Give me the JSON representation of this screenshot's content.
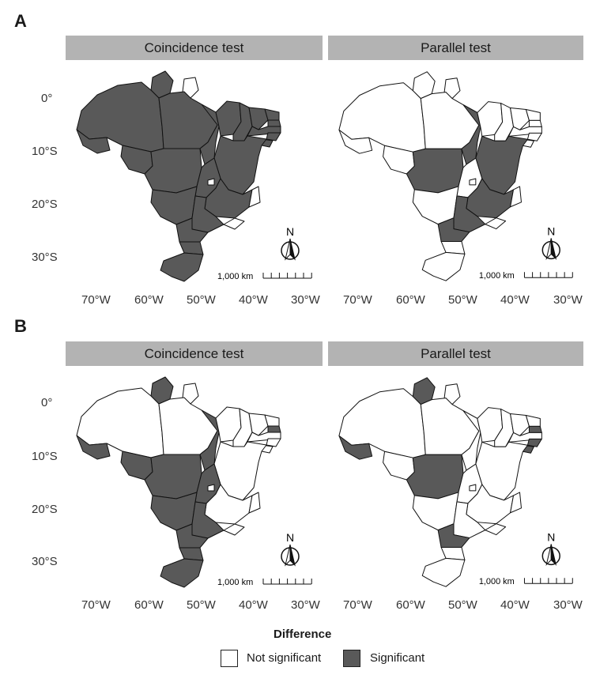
{
  "figure": {
    "panels": [
      {
        "id": "A",
        "facets": [
          {
            "title": "Coincidence test",
            "significant": [
              "RR",
              "AM",
              "PA",
              "MT",
              "RO",
              "AC",
              "TO",
              "MA",
              "BA",
              "GO",
              "MG",
              "MS",
              "SP",
              "PR",
              "SC",
              "RS",
              "PI",
              "CE",
              "RN",
              "PB",
              "PE",
              "AL",
              "SE"
            ]
          },
          {
            "title": "Parallel test",
            "significant": [
              "MT_north",
              "TO_part",
              "BA",
              "MG",
              "SP",
              "PR"
            ]
          }
        ]
      },
      {
        "id": "B",
        "facets": [
          {
            "title": "Coincidence test",
            "significant": [
              "RR",
              "MT",
              "AC",
              "RO",
              "GO",
              "MS",
              "SP",
              "PR",
              "SC",
              "RS",
              "PB_block",
              "TO_part"
            ]
          },
          {
            "title": "Parallel test",
            "significant": [
              "RR",
              "MT",
              "AC",
              "PB",
              "AL_SE",
              "PR"
            ]
          }
        ]
      }
    ],
    "y_ticks": [
      "0°",
      "10°S",
      "20°S",
      "30°S"
    ],
    "x_ticks": [
      "70°W",
      "60°W",
      "50°W",
      "40°W",
      "30°W"
    ],
    "scale_bar_label": "1,000 km",
    "north_label": "N",
    "legend": {
      "title": "Difference",
      "items": [
        {
          "label": "Not significant",
          "color": "#ffffff"
        },
        {
          "label": "Significant",
          "color": "#595959"
        }
      ]
    }
  }
}
